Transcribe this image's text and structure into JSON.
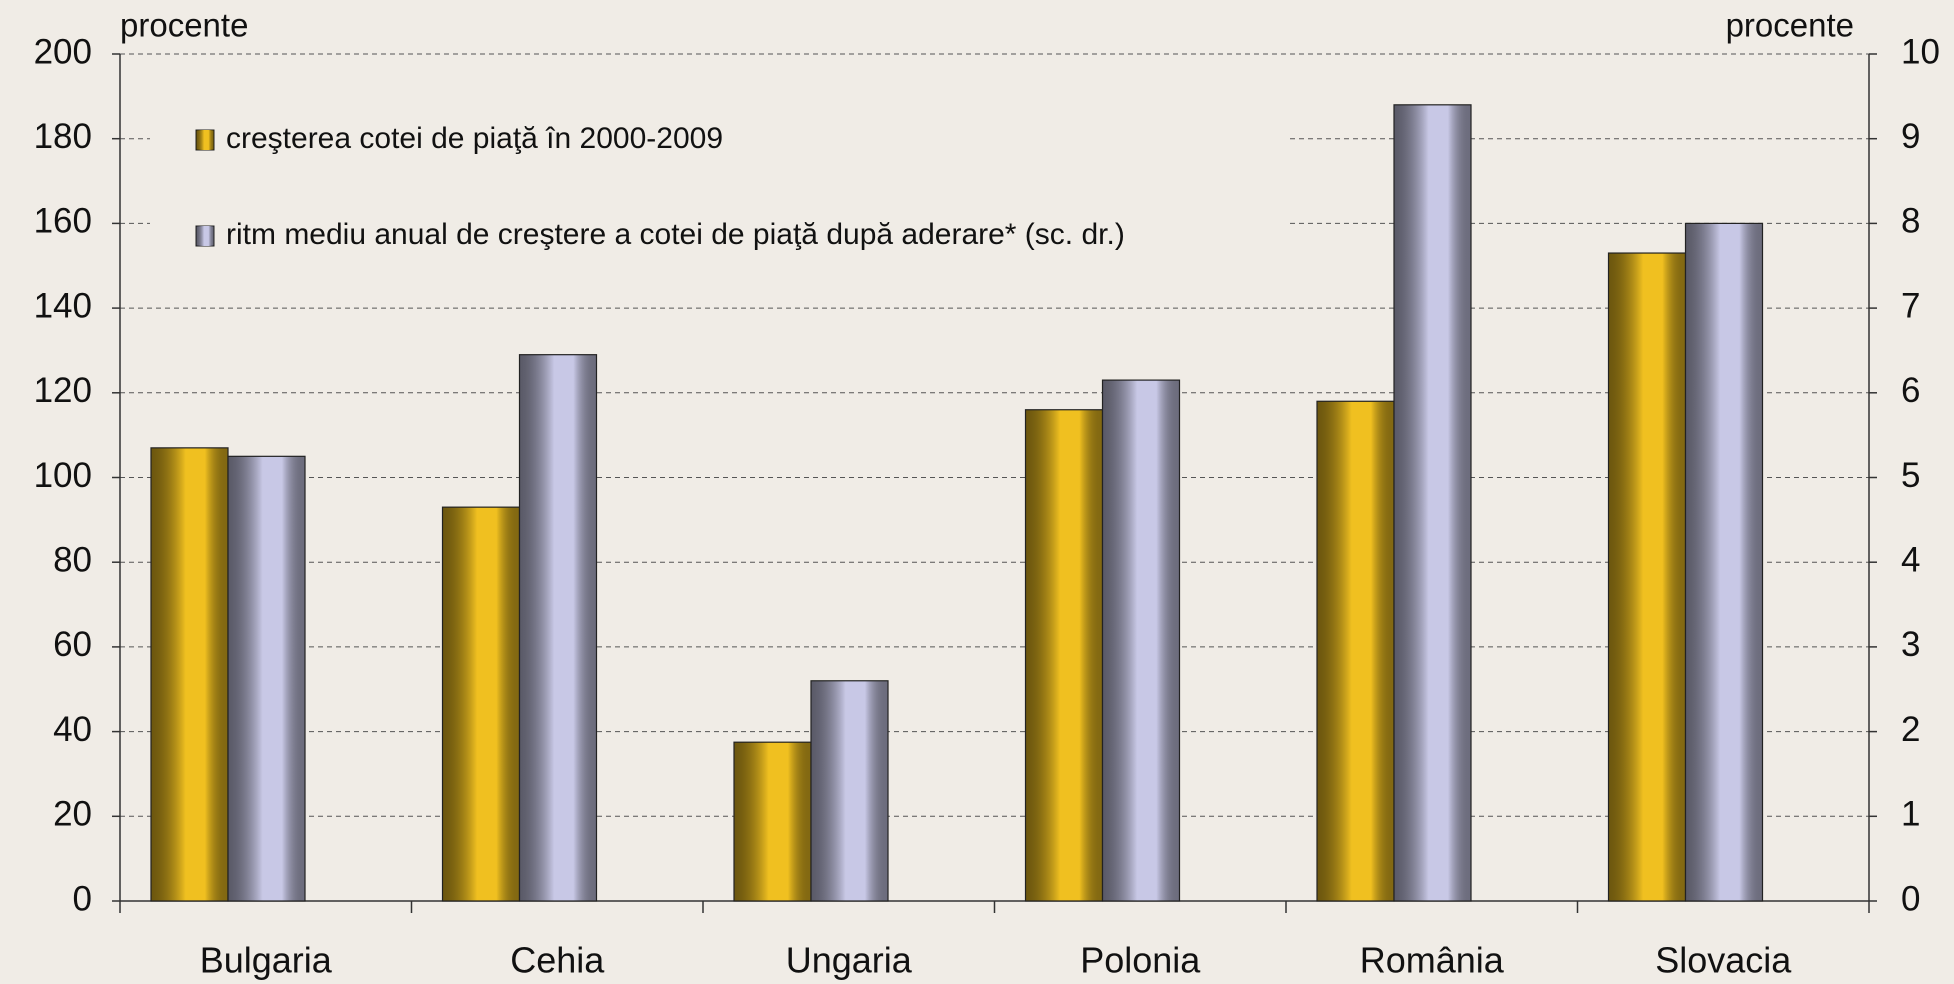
{
  "chart_data": {
    "type": "bar",
    "y_label": "procente",
    "y2_label": "procente",
    "categories": [
      "Bulgaria",
      "Cehia",
      "Ungaria",
      "Polonia",
      "România",
      "Slovacia"
    ],
    "series": [
      {
        "name": "creşterea cotei de piaţă în 2000-2009",
        "color": "#f0c020",
        "values": [
          107,
          93,
          37.5,
          116,
          118,
          153
        ]
      },
      {
        "name": "ritm mediu anual de creştere a cotei de piaţă după aderare* (sc. dr.)",
        "color": "#c8c8e6",
        "axis": "y2",
        "values": [
          5.25,
          6.45,
          2.6,
          6.15,
          9.4,
          8.0
        ]
      }
    ],
    "ylim": [
      0,
      200
    ],
    "yticks": [
      0,
      20,
      40,
      60,
      80,
      100,
      120,
      140,
      160,
      180,
      200
    ],
    "y2lim": [
      0,
      10
    ],
    "y2ticks": [
      0,
      1,
      2,
      3,
      4,
      5,
      6,
      7,
      8,
      9,
      10
    ],
    "grid": true,
    "legend": "top-left"
  }
}
